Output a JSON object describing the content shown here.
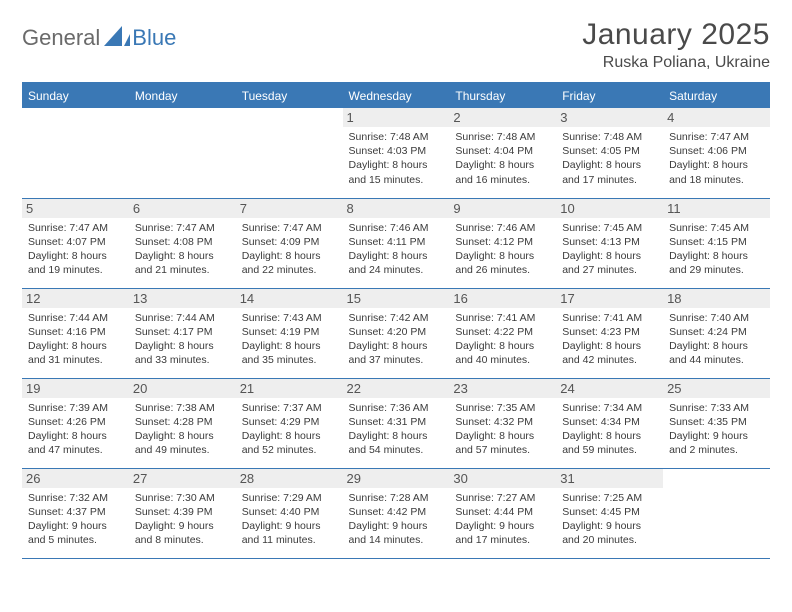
{
  "logo": {
    "text1": "General",
    "text2": "Blue"
  },
  "title": "January 2025",
  "location": "Ruska Poliana, Ukraine",
  "colors": {
    "brand": "#3a78b5",
    "logo_gray": "#6a6a6a",
    "day_header_bg": "#eeeeee",
    "text": "#333333",
    "background": "#ffffff"
  },
  "weekdays": [
    "Sunday",
    "Monday",
    "Tuesday",
    "Wednesday",
    "Thursday",
    "Friday",
    "Saturday"
  ],
  "weeks": [
    [
      null,
      null,
      null,
      {
        "n": "1",
        "sr": "7:48 AM",
        "ss": "4:03 PM",
        "dl": "8 hours and 15 minutes."
      },
      {
        "n": "2",
        "sr": "7:48 AM",
        "ss": "4:04 PM",
        "dl": "8 hours and 16 minutes."
      },
      {
        "n": "3",
        "sr": "7:48 AM",
        "ss": "4:05 PM",
        "dl": "8 hours and 17 minutes."
      },
      {
        "n": "4",
        "sr": "7:47 AM",
        "ss": "4:06 PM",
        "dl": "8 hours and 18 minutes."
      }
    ],
    [
      {
        "n": "5",
        "sr": "7:47 AM",
        "ss": "4:07 PM",
        "dl": "8 hours and 19 minutes."
      },
      {
        "n": "6",
        "sr": "7:47 AM",
        "ss": "4:08 PM",
        "dl": "8 hours and 21 minutes."
      },
      {
        "n": "7",
        "sr": "7:47 AM",
        "ss": "4:09 PM",
        "dl": "8 hours and 22 minutes."
      },
      {
        "n": "8",
        "sr": "7:46 AM",
        "ss": "4:11 PM",
        "dl": "8 hours and 24 minutes."
      },
      {
        "n": "9",
        "sr": "7:46 AM",
        "ss": "4:12 PM",
        "dl": "8 hours and 26 minutes."
      },
      {
        "n": "10",
        "sr": "7:45 AM",
        "ss": "4:13 PM",
        "dl": "8 hours and 27 minutes."
      },
      {
        "n": "11",
        "sr": "7:45 AM",
        "ss": "4:15 PM",
        "dl": "8 hours and 29 minutes."
      }
    ],
    [
      {
        "n": "12",
        "sr": "7:44 AM",
        "ss": "4:16 PM",
        "dl": "8 hours and 31 minutes."
      },
      {
        "n": "13",
        "sr": "7:44 AM",
        "ss": "4:17 PM",
        "dl": "8 hours and 33 minutes."
      },
      {
        "n": "14",
        "sr": "7:43 AM",
        "ss": "4:19 PM",
        "dl": "8 hours and 35 minutes."
      },
      {
        "n": "15",
        "sr": "7:42 AM",
        "ss": "4:20 PM",
        "dl": "8 hours and 37 minutes."
      },
      {
        "n": "16",
        "sr": "7:41 AM",
        "ss": "4:22 PM",
        "dl": "8 hours and 40 minutes."
      },
      {
        "n": "17",
        "sr": "7:41 AM",
        "ss": "4:23 PM",
        "dl": "8 hours and 42 minutes."
      },
      {
        "n": "18",
        "sr": "7:40 AM",
        "ss": "4:24 PM",
        "dl": "8 hours and 44 minutes."
      }
    ],
    [
      {
        "n": "19",
        "sr": "7:39 AM",
        "ss": "4:26 PM",
        "dl": "8 hours and 47 minutes."
      },
      {
        "n": "20",
        "sr": "7:38 AM",
        "ss": "4:28 PM",
        "dl": "8 hours and 49 minutes."
      },
      {
        "n": "21",
        "sr": "7:37 AM",
        "ss": "4:29 PM",
        "dl": "8 hours and 52 minutes."
      },
      {
        "n": "22",
        "sr": "7:36 AM",
        "ss": "4:31 PM",
        "dl": "8 hours and 54 minutes."
      },
      {
        "n": "23",
        "sr": "7:35 AM",
        "ss": "4:32 PM",
        "dl": "8 hours and 57 minutes."
      },
      {
        "n": "24",
        "sr": "7:34 AM",
        "ss": "4:34 PM",
        "dl": "8 hours and 59 minutes."
      },
      {
        "n": "25",
        "sr": "7:33 AM",
        "ss": "4:35 PM",
        "dl": "9 hours and 2 minutes."
      }
    ],
    [
      {
        "n": "26",
        "sr": "7:32 AM",
        "ss": "4:37 PM",
        "dl": "9 hours and 5 minutes."
      },
      {
        "n": "27",
        "sr": "7:30 AM",
        "ss": "4:39 PM",
        "dl": "9 hours and 8 minutes."
      },
      {
        "n": "28",
        "sr": "7:29 AM",
        "ss": "4:40 PM",
        "dl": "9 hours and 11 minutes."
      },
      {
        "n": "29",
        "sr": "7:28 AM",
        "ss": "4:42 PM",
        "dl": "9 hours and 14 minutes."
      },
      {
        "n": "30",
        "sr": "7:27 AM",
        "ss": "4:44 PM",
        "dl": "9 hours and 17 minutes."
      },
      {
        "n": "31",
        "sr": "7:25 AM",
        "ss": "4:45 PM",
        "dl": "9 hours and 20 minutes."
      },
      null
    ]
  ],
  "labels": {
    "sunrise": "Sunrise:",
    "sunset": "Sunset:",
    "daylight": "Daylight:"
  }
}
